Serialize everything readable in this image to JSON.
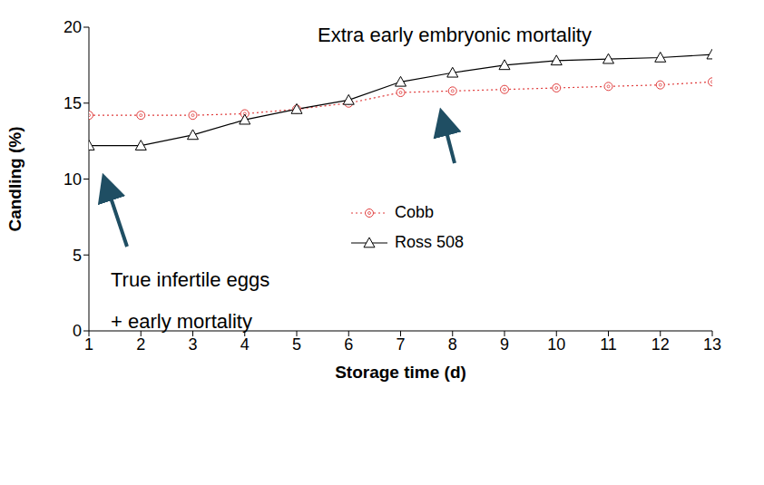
{
  "chart_data": {
    "type": "line",
    "xlabel": "Storage time (d)",
    "ylabel": "Candling (%)",
    "x": [
      1,
      2,
      3,
      4,
      5,
      6,
      7,
      8,
      9,
      10,
      11,
      12,
      13
    ],
    "xlim": [
      1,
      13
    ],
    "xticks": [
      1,
      2,
      3,
      4,
      5,
      6,
      7,
      8,
      9,
      10,
      11,
      12,
      13
    ],
    "ylim": [
      0,
      20
    ],
    "yticks": [
      0,
      5,
      10,
      15,
      20
    ],
    "grid": false,
    "legend": "center",
    "series": [
      {
        "name": "Cobb",
        "color": "#e03c3c",
        "marker": "circle",
        "line_style": "dotted",
        "values": [
          14.2,
          14.2,
          14.2,
          14.3,
          14.6,
          15.0,
          15.7,
          15.8,
          15.9,
          16.0,
          16.1,
          16.2,
          16.4
        ]
      },
      {
        "name": "Ross 508",
        "color": "#000000",
        "marker": "triangle",
        "line_style": "solid",
        "values": [
          12.2,
          12.2,
          12.9,
          13.9,
          14.6,
          15.2,
          16.4,
          17.0,
          17.5,
          17.8,
          17.9,
          18.0,
          18.2
        ]
      }
    ],
    "annotations": [
      "Extra early embryonic mortality",
      "True infertile eggs",
      "+ early mortality"
    ]
  }
}
